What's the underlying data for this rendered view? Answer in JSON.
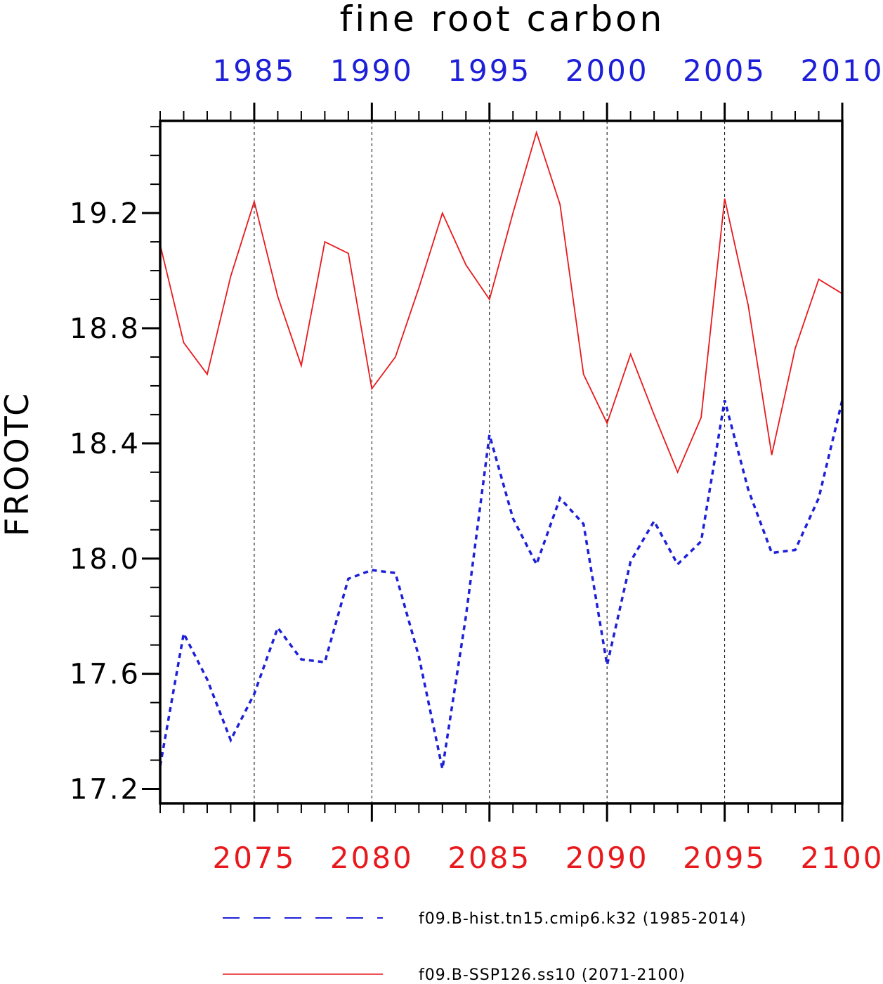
{
  "chart_data": {
    "type": "line",
    "title": "fine root carbon",
    "ylabel": "FROOTC",
    "ylim": [
      17.15,
      19.52
    ],
    "y_ticks": [
      "17.2",
      "17.6",
      "18.0",
      "18.4",
      "18.8",
      "19.2"
    ],
    "x_bottom": {
      "range": [
        2071,
        2100
      ],
      "tick_labels": [
        "2075",
        "2080",
        "2085",
        "2090",
        "2095",
        "2100"
      ],
      "color": "#e8191c"
    },
    "x_top": {
      "range": [
        1981,
        2010
      ],
      "tick_labels": [
        "1985",
        "1990",
        "1995",
        "2000",
        "2005",
        "2010"
      ],
      "color": "#1d20d8"
    },
    "grid": "vertical dashed at major ticks",
    "series": [
      {
        "name": "f09.B-hist.tn15.cmip6.k32 (1985-2014)",
        "color": "#1d20d8",
        "style": "dashed",
        "x": [
          2071,
          2072,
          2073,
          2074,
          2075,
          2076,
          2077,
          2078,
          2079,
          2080,
          2081,
          2082,
          2083,
          2084,
          2085,
          2086,
          2087,
          2088,
          2089,
          2090,
          2091,
          2092,
          2093,
          2094,
          2095,
          2096,
          2097,
          2098,
          2099,
          2100
        ],
        "values": [
          17.28,
          17.74,
          17.58,
          17.37,
          17.53,
          17.76,
          17.65,
          17.64,
          17.93,
          17.96,
          17.95,
          17.66,
          17.27,
          17.8,
          18.43,
          18.14,
          17.98,
          18.21,
          18.12,
          17.63,
          17.99,
          18.13,
          17.98,
          18.06,
          18.55,
          18.24,
          18.02,
          18.03,
          18.21,
          18.55
        ]
      },
      {
        "name": "f09.B-SSP126.ss10 (2071-2100)",
        "color": "#e8191c",
        "style": "solid",
        "x": [
          2071,
          2072,
          2073,
          2074,
          2075,
          2076,
          2077,
          2078,
          2079,
          2080,
          2081,
          2082,
          2083,
          2084,
          2085,
          2086,
          2087,
          2088,
          2089,
          2090,
          2091,
          2092,
          2093,
          2094,
          2095,
          2096,
          2097,
          2098,
          2099,
          2100
        ],
        "values": [
          19.09,
          18.75,
          18.64,
          18.98,
          19.24,
          18.91,
          18.67,
          19.1,
          19.06,
          18.59,
          18.7,
          18.94,
          19.2,
          19.02,
          18.9,
          19.2,
          19.48,
          19.23,
          18.64,
          18.47,
          18.71,
          18.5,
          18.3,
          18.49,
          19.25,
          18.88,
          18.36,
          18.73,
          18.97,
          18.92
        ]
      }
    ],
    "legend": [
      {
        "label": "f09.B-hist.tn15.cmip6.k32 (1985-2014)",
        "color": "#1d20d8",
        "style": "dashed"
      },
      {
        "label": "f09.B-SSP126.ss10 (2071-2100)",
        "color": "#e8191c",
        "style": "solid"
      }
    ]
  }
}
